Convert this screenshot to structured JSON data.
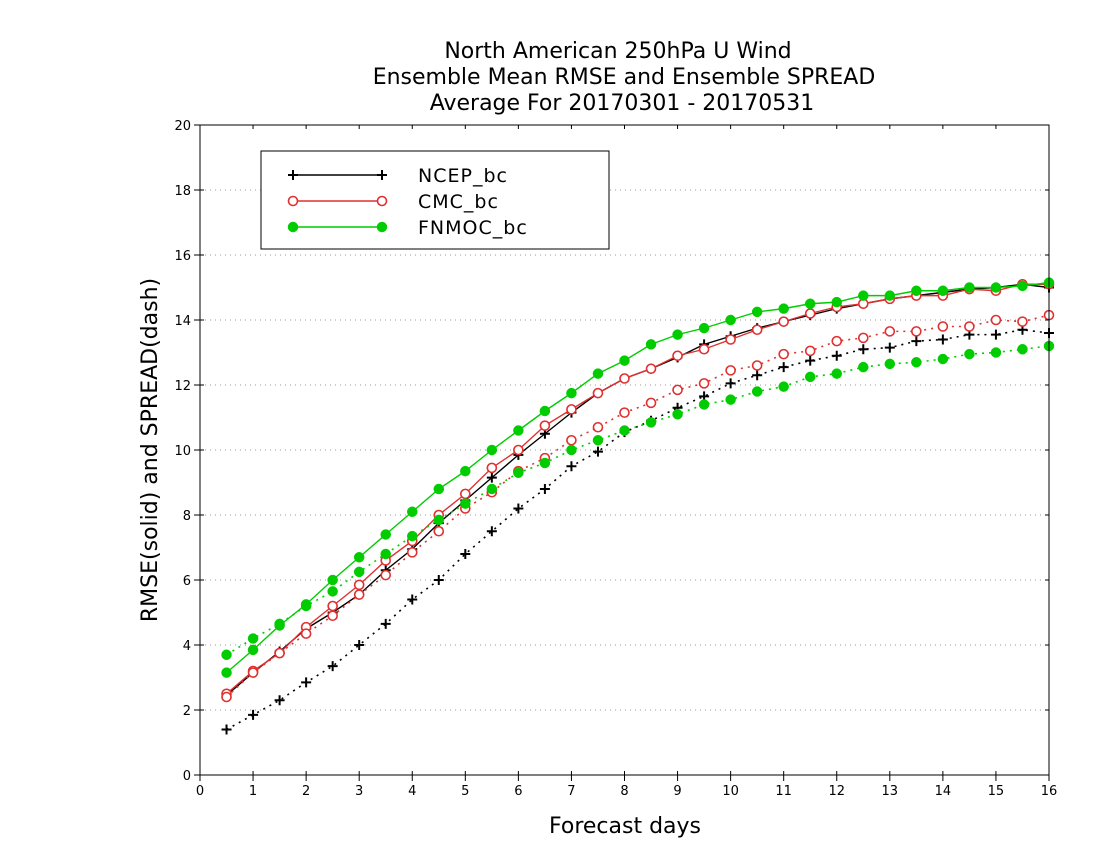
{
  "chart_data": {
    "type": "line",
    "title": [
      "North American 250hPa U Wind",
      "Ensemble Mean RMSE and Ensemble SPREAD",
      "Average For 20170301 - 20170531"
    ],
    "xlabel": "Forecast days",
    "ylabel": "RMSE(solid) and SPREAD(dash)",
    "xlim": [
      0,
      16
    ],
    "ylim": [
      0,
      20
    ],
    "x_ticks": [
      0,
      1,
      2,
      3,
      4,
      5,
      6,
      7,
      8,
      9,
      10,
      11,
      12,
      13,
      14,
      15,
      16
    ],
    "y_ticks": [
      0,
      2,
      4,
      6,
      8,
      10,
      12,
      14,
      16,
      18,
      20
    ],
    "grid": "horizontal dotted",
    "legend_position": "top-left",
    "x": [
      0.5,
      1,
      1.5,
      2,
      2.5,
      3,
      3.5,
      4,
      4.5,
      5,
      5.5,
      6,
      6.5,
      7,
      7.5,
      8,
      8.5,
      9,
      9.5,
      10,
      10.5,
      11,
      11.5,
      12,
      12.5,
      13,
      13.5,
      14,
      14.5,
      15,
      15.5,
      16
    ],
    "series": [
      {
        "name": "NCEP_bc",
        "color": "#000000",
        "marker": "plus",
        "rmse": [
          2.45,
          3.15,
          3.8,
          4.5,
          5.0,
          5.55,
          6.3,
          6.95,
          7.75,
          8.45,
          9.15,
          9.85,
          10.5,
          11.15,
          11.75,
          12.2,
          12.5,
          12.85,
          13.25,
          13.5,
          13.75,
          13.95,
          14.15,
          14.35,
          14.5,
          14.65,
          14.75,
          14.85,
          14.95,
          15.0,
          15.1,
          15.0
        ],
        "spread": [
          1.4,
          1.85,
          2.3,
          2.85,
          3.35,
          4.0,
          4.65,
          5.4,
          6.0,
          6.8,
          7.5,
          8.2,
          8.8,
          9.5,
          9.95,
          10.55,
          10.9,
          11.3,
          11.65,
          12.05,
          12.3,
          12.55,
          12.75,
          12.9,
          13.1,
          13.15,
          13.35,
          13.4,
          13.55,
          13.55,
          13.7,
          13.6
        ]
      },
      {
        "name": "CMC_bc",
        "color": "#e03030",
        "marker": "open-circle",
        "rmse": [
          2.5,
          3.2,
          3.75,
          4.55,
          5.2,
          5.85,
          6.6,
          7.2,
          8.0,
          8.65,
          9.45,
          10.0,
          10.75,
          11.25,
          11.75,
          12.2,
          12.5,
          12.9,
          13.1,
          13.4,
          13.7,
          13.95,
          14.2,
          14.4,
          14.5,
          14.65,
          14.75,
          14.75,
          14.95,
          14.9,
          15.1,
          15.1
        ],
        "spread": [
          2.4,
          3.15,
          3.75,
          4.35,
          4.9,
          5.55,
          6.15,
          6.85,
          7.5,
          8.2,
          8.7,
          9.35,
          9.75,
          10.3,
          10.7,
          11.15,
          11.45,
          11.85,
          12.05,
          12.45,
          12.6,
          12.95,
          13.05,
          13.35,
          13.45,
          13.65,
          13.65,
          13.8,
          13.8,
          14.0,
          13.95,
          14.15
        ]
      },
      {
        "name": "FNMOC_bc",
        "color": "#00cc00",
        "marker": "filled-circle",
        "rmse": [
          3.15,
          3.85,
          4.6,
          5.25,
          6.0,
          6.7,
          7.4,
          8.1,
          8.8,
          9.35,
          10.0,
          10.6,
          11.2,
          11.75,
          12.35,
          12.75,
          13.25,
          13.55,
          13.75,
          14.0,
          14.25,
          14.35,
          14.5,
          14.55,
          14.75,
          14.75,
          14.9,
          14.9,
          15.0,
          15.0,
          15.05,
          15.15
        ],
        "spread": [
          3.7,
          4.2,
          4.65,
          5.2,
          5.65,
          6.25,
          6.8,
          7.35,
          7.85,
          8.35,
          8.8,
          9.3,
          9.6,
          10.0,
          10.3,
          10.6,
          10.85,
          11.1,
          11.4,
          11.55,
          11.8,
          11.95,
          12.25,
          12.35,
          12.55,
          12.65,
          12.7,
          12.8,
          12.95,
          13.0,
          13.1,
          13.2
        ]
      }
    ]
  }
}
